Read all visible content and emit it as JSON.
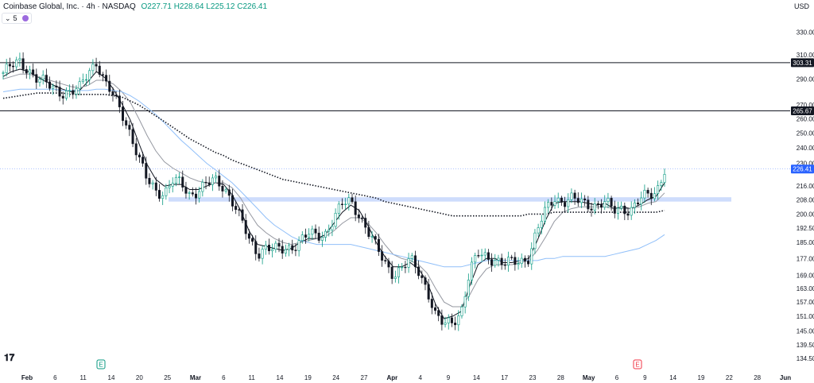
{
  "header": {
    "symbol_title": "Coinbase Global, Inc. · 4h · NASDAQ",
    "ohlc": {
      "o": "O227.71",
      "h": "H228.64",
      "l": "L225.12",
      "c": "C226.41"
    },
    "indicator_count": "5",
    "currency": "USD"
  },
  "colors": {
    "up": "#089981",
    "down": "#131722",
    "ema_fast": "#131722",
    "ema_mid": "#9598a1",
    "ma_long": "#90bff9",
    "ma_dotted": "#131722",
    "zone": "#c5d6fb",
    "price_marker": "#2962ff"
  },
  "chart_data": {
    "type": "candlestick",
    "title": "Coinbase Global, Inc. · 4h · NASDAQ",
    "y_axis": {
      "ticks": [
        330.0,
        310.0,
        290.0,
        270.0,
        260.0,
        250.0,
        240.0,
        230.0,
        216.0,
        208.0,
        200.0,
        192.5,
        185.0,
        177.0,
        169.0,
        163.0,
        157.0,
        151.0,
        145.0,
        139.5,
        134.5
      ],
      "scale": "log",
      "range": [
        131,
        345
      ]
    },
    "x_axis": {
      "ticks": [
        "Feb",
        "6",
        "11",
        "14",
        "20",
        "25",
        "Mar",
        "6",
        "11",
        "14",
        "19",
        "24",
        "27",
        "Apr",
        "4",
        "9",
        "14",
        "17",
        "23",
        "28",
        "May",
        "6",
        "9",
        "14",
        "19",
        "22",
        "28",
        "Jun"
      ]
    },
    "horizontal_lines": [
      {
        "value": 303.31,
        "label": "303.31"
      },
      {
        "value": 265.67,
        "label": "265.67"
      }
    ],
    "last_price": {
      "value": 226.41,
      "label": "226.41"
    },
    "zone": {
      "low": 207.0,
      "high": 209.5
    },
    "earnings_markers": [
      "E",
      "E"
    ],
    "price_path": [
      295,
      300,
      304,
      298,
      290,
      286,
      283,
      280,
      279,
      282,
      296,
      305,
      286,
      276,
      265,
      250,
      232,
      219,
      214,
      212,
      219,
      217,
      211,
      214,
      217,
      219,
      216,
      208,
      197,
      186,
      180,
      183,
      181,
      181,
      183,
      186,
      189,
      188,
      190,
      198,
      205,
      207,
      200,
      191,
      182,
      175,
      170,
      172,
      176,
      171,
      163,
      151,
      147,
      149,
      153,
      170,
      179,
      178,
      177,
      174,
      175,
      176,
      178,
      191,
      202,
      210,
      207,
      208,
      207,
      206,
      205,
      206,
      202,
      204,
      202,
      207,
      211,
      213,
      226
    ],
    "series": [
      {
        "key": "ema_fast",
        "values": [
          292,
          296,
          298,
          296,
          292,
          288,
          285,
          282,
          280,
          281,
          288,
          296,
          291,
          282,
          271,
          259,
          243,
          229,
          220,
          216,
          217,
          217,
          214,
          214,
          216,
          218,
          217,
          211,
          202,
          191,
          184,
          183,
          182,
          181,
          182,
          185,
          187,
          187,
          189,
          195,
          201,
          205,
          202,
          194,
          185,
          178,
          173,
          173,
          175,
          172,
          166,
          156,
          150,
          151,
          153,
          164,
          174,
          177,
          177,
          175,
          175,
          176,
          177,
          186,
          197,
          206,
          207,
          207,
          207,
          206,
          205,
          206,
          203,
          204,
          203,
          205,
          208,
          210,
          218
        ]
      },
      {
        "key": "ema_mid",
        "values": [
          290,
          292,
          294,
          294,
          292,
          290,
          288,
          286,
          284,
          283,
          285,
          289,
          289,
          286,
          280,
          272,
          260,
          248,
          238,
          231,
          227,
          224,
          221,
          219,
          218,
          218,
          218,
          215,
          209,
          201,
          194,
          190,
          187,
          185,
          184,
          185,
          186,
          187,
          188,
          191,
          195,
          198,
          198,
          195,
          190,
          184,
          179,
          177,
          176,
          174,
          170,
          163,
          157,
          155,
          155,
          160,
          167,
          172,
          174,
          174,
          174,
          175,
          176,
          181,
          188,
          196,
          201,
          203,
          204,
          204,
          204,
          204,
          203,
          203,
          203,
          204,
          206,
          207,
          212
        ]
      },
      {
        "key": "ma_long",
        "values": [
          280,
          281,
          282,
          282,
          282,
          282,
          282,
          281,
          281,
          281,
          281,
          282,
          282,
          281,
          280,
          277,
          273,
          268,
          263,
          257,
          251,
          245,
          240,
          235,
          230,
          226,
          222,
          218,
          213,
          208,
          203,
          198,
          194,
          191,
          188,
          186,
          185,
          184,
          184,
          184,
          184,
          184,
          183,
          182,
          181,
          180,
          179,
          178,
          177,
          176,
          175,
          174,
          173,
          173,
          173,
          174,
          175,
          176,
          176,
          176,
          176,
          176,
          176,
          176,
          177,
          177,
          178,
          178,
          178,
          178,
          178,
          178,
          179,
          180,
          181,
          182,
          184,
          186,
          189
        ]
      },
      {
        "key": "ma_dotted",
        "values": [
          275,
          276,
          277,
          278,
          279,
          279,
          279,
          279,
          278,
          278,
          278,
          278,
          278,
          277,
          276,
          273,
          270,
          266,
          262,
          258,
          254,
          250,
          246,
          243,
          240,
          237,
          235,
          232,
          230,
          228,
          226,
          224,
          222,
          220,
          219,
          218,
          217,
          216,
          215,
          214,
          213,
          212,
          211,
          210,
          209,
          207,
          206,
          205,
          204,
          203,
          202,
          201,
          200,
          199,
          199,
          199,
          199,
          199,
          199,
          199,
          199,
          199,
          200,
          200,
          200,
          201,
          201,
          201,
          201,
          201,
          201,
          201,
          201,
          201,
          201,
          201,
          201,
          201,
          202
        ]
      }
    ],
    "grid": false
  }
}
